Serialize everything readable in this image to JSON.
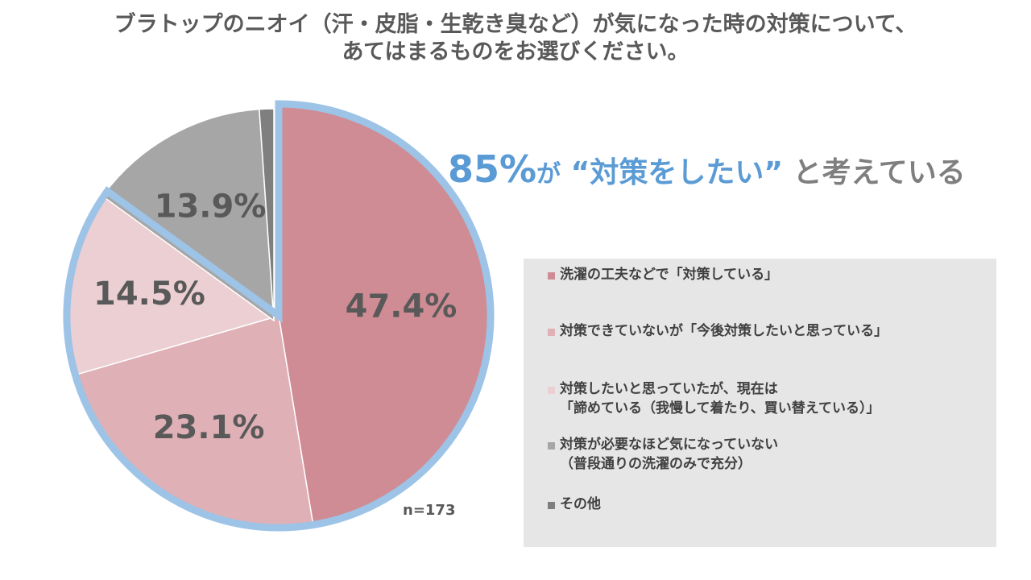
{
  "chart_data": {
    "type": "pie",
    "title_lines": [
      "ブラトップのニオイ（汗・皮脂・生乾き臭など）が気になった時の対策について、",
      "あてはまるものをお選びください。"
    ],
    "slices": [
      {
        "label_lines": [
          "洗濯の工夫などで「対策している」"
        ],
        "value": 47.4,
        "value_label": "47.4%",
        "color": "#d08c94"
      },
      {
        "label_lines": [
          "対策できていないが「今後対策したいと思っている」"
        ],
        "value": 23.1,
        "value_label": "23.1%",
        "color": "#dfb0b6"
      },
      {
        "label_lines": [
          "対策したいと思っていたが、現在は",
          "「諦めている（我慢して着たり、買い替えている）」"
        ],
        "value": 14.5,
        "value_label": "14.5%",
        "color": "#eccfd3"
      },
      {
        "label_lines": [
          "対策が必要なほど気になっていない",
          "（普段通りの洗濯のみで充分）"
        ],
        "value": 13.9,
        "value_label": "13.9%",
        "color": "#a6a6a6"
      },
      {
        "label_lines": [
          "その他"
        ],
        "value": 1.1,
        "value_label": "",
        "color": "#7f7f7f"
      }
    ],
    "highlight_color": "#9dc3e6",
    "sample_size": "n=173",
    "headline": {
      "percent": "85%",
      "particle": "が",
      "quote": "“対策をしたい”",
      "tail": " と考えている"
    },
    "legend_placement": "right",
    "text_color": "#595959"
  }
}
